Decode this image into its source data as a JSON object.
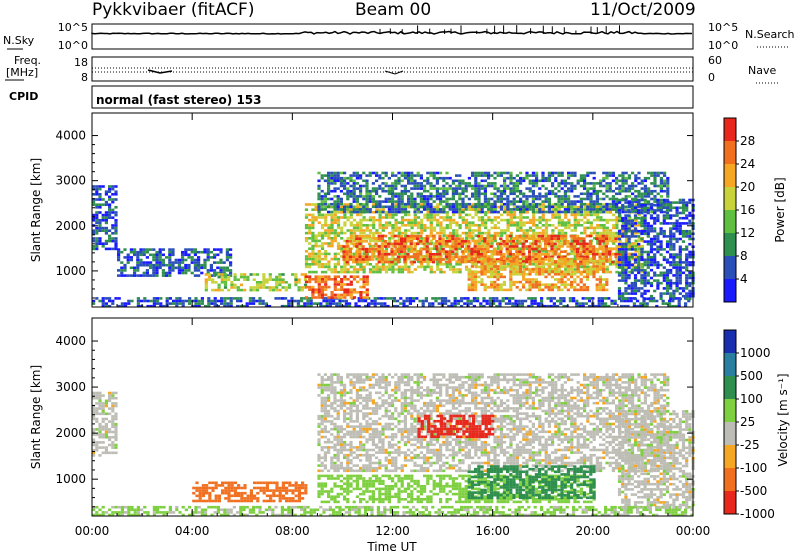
{
  "header": {
    "station": "Pykkvibaer (fitACF)",
    "beam": "Beam 00",
    "date": "11/Oct/2009"
  },
  "top_panels": {
    "nsky_label": "N.Sky",
    "nsearch_label": "N.Search",
    "noise_ticks": [
      "10^5",
      "10^0"
    ],
    "freq_label_1": "Freq.",
    "freq_label_2": "[MHz]",
    "freq_ticks": [
      "18",
      "8"
    ],
    "nave_label": "Nave",
    "nave_ticks": [
      "60",
      "0"
    ],
    "cpid_label": "CPID",
    "cpid_text": "normal (fast stereo) 153"
  },
  "colors": {
    "power_scale": [
      "#1a1aff",
      "#2a4fb8",
      "#2f8f4f",
      "#5fbf40",
      "#c8d23a",
      "#f5a623",
      "#f07020",
      "#e8281c"
    ],
    "velocity_scale": [
      "#1a2fb0",
      "#2a7fa0",
      "#2f8f4f",
      "#7fd040",
      "#bdbdb5",
      "#f5a623",
      "#f07020",
      "#e8281c"
    ]
  },
  "chart_data": [
    {
      "type": "heatmap",
      "title": "",
      "xlabel": "Time UT",
      "ylabel": "Slant Range [km]",
      "colorbar_label": "Power [dB]",
      "colorbar_ticks": [
        "28",
        "24",
        "20",
        "16",
        "12",
        "8",
        "4"
      ],
      "x_ticks": [
        "00:00",
        "04:00",
        "08:00",
        "12:00",
        "16:00",
        "20:00",
        "00:00"
      ],
      "y_ticks": [
        "1000",
        "2000",
        "3000",
        "4000"
      ],
      "xlim": [
        0,
        24
      ],
      "ylim": [
        200,
        4500
      ],
      "regions": [
        {
          "t0": 0.0,
          "t1": 24.0,
          "r0": 200,
          "r1": 420,
          "value": 6
        },
        {
          "t0": 0.0,
          "t1": 1.0,
          "r0": 1500,
          "r1": 2900,
          "value": 6
        },
        {
          "t0": 1.0,
          "t1": 5.5,
          "r0": 900,
          "r1": 1500,
          "value": 6
        },
        {
          "t0": 4.5,
          "t1": 8.5,
          "r0": 550,
          "r1": 950,
          "value": 16
        },
        {
          "t0": 8.5,
          "t1": 11.0,
          "r0": 400,
          "r1": 900,
          "value": 26
        },
        {
          "t0": 8.5,
          "t1": 22.0,
          "r0": 1000,
          "r1": 2500,
          "value": 18
        },
        {
          "t0": 10.0,
          "t1": 21.0,
          "r0": 1200,
          "r1": 1800,
          "value": 26
        },
        {
          "t0": 9.0,
          "t1": 23.0,
          "r0": 2300,
          "r1": 3200,
          "value": 8
        },
        {
          "t0": 15.0,
          "t1": 20.5,
          "r0": 600,
          "r1": 1300,
          "value": 22
        },
        {
          "t0": 21.0,
          "t1": 24.0,
          "r0": 400,
          "r1": 2600,
          "value": 6
        }
      ]
    },
    {
      "type": "heatmap",
      "title": "",
      "xlabel": "Time UT",
      "ylabel": "Slant Range [km]",
      "colorbar_label": "Velocity [m s⁻¹]",
      "colorbar_ticks": [
        "1000",
        "500",
        "100",
        "25",
        "-25",
        "-100",
        "-500",
        "-1000"
      ],
      "x_ticks": [
        "00:00",
        "04:00",
        "08:00",
        "12:00",
        "16:00",
        "20:00",
        "00:00"
      ],
      "y_ticks": [
        "1000",
        "2000",
        "3000",
        "4000"
      ],
      "xlim": [
        0,
        24
      ],
      "ylim": [
        200,
        4500
      ],
      "regions": [
        {
          "t0": 0.0,
          "t1": 24.0,
          "r0": 200,
          "r1": 420,
          "value": 40
        },
        {
          "t0": 0.0,
          "t1": 1.0,
          "r0": 1500,
          "r1": 2900,
          "value": 0
        },
        {
          "t0": 4.0,
          "t1": 8.5,
          "r0": 550,
          "r1": 950,
          "value": -200
        },
        {
          "t0": 9.0,
          "t1": 23.0,
          "r0": 1200,
          "r1": 3300,
          "value": 0
        },
        {
          "t0": 13.0,
          "t1": 16.0,
          "r0": 1900,
          "r1": 2400,
          "value": -800
        },
        {
          "t0": 9.0,
          "t1": 20.0,
          "r0": 500,
          "r1": 1100,
          "value": 60
        },
        {
          "t0": 15.0,
          "t1": 20.0,
          "r0": 600,
          "r1": 1300,
          "value": 300
        },
        {
          "t0": 21.0,
          "t1": 24.0,
          "r0": 400,
          "r1": 2500,
          "value": 0
        }
      ]
    }
  ]
}
